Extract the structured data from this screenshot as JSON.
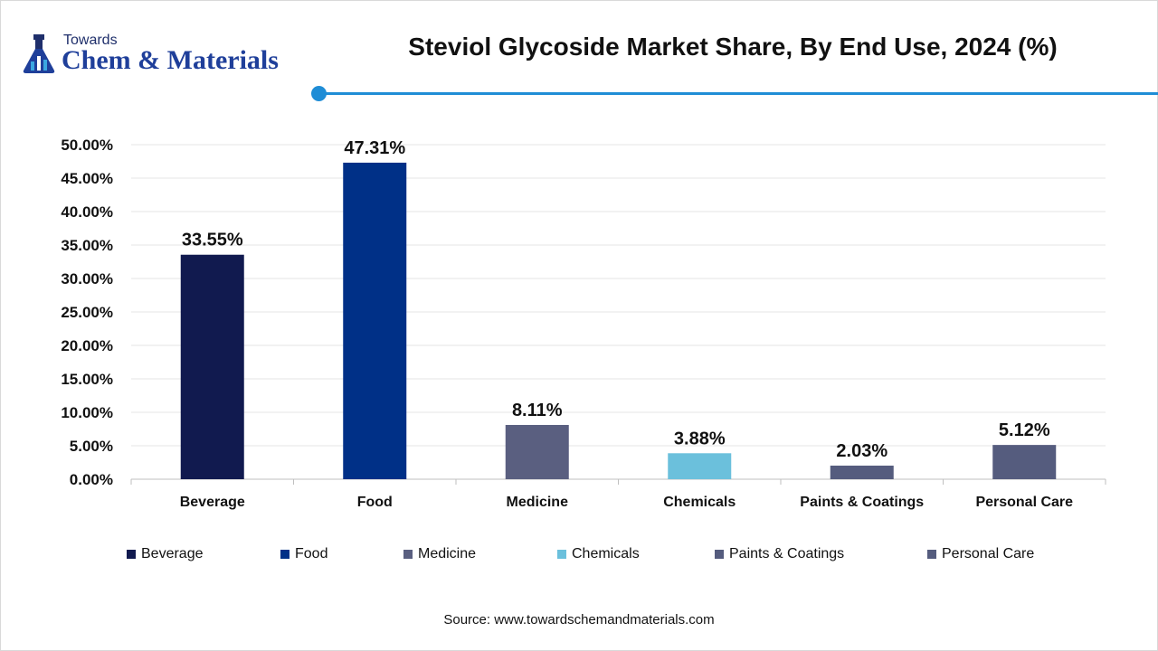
{
  "brand": {
    "top_text": "Towards",
    "main_text": "Chem & Materials",
    "icon": "flask-with-bars-icon",
    "colors": {
      "dark": "#1f2f6b",
      "accent": "#1f3f9a",
      "light": "#3ba7e0"
    }
  },
  "header": {
    "title": "Steviol Glycoside Market Share, By End Use, 2024 (%)",
    "rule_color": "#1f8dd6"
  },
  "chart_data": {
    "type": "bar",
    "title": "Steviol Glycoside Market Share, By End Use, 2024 (%)",
    "categories": [
      "Beverage",
      "Food",
      "Medicine",
      "Chemicals",
      "Paints & Coatings",
      "Personal Care"
    ],
    "values": [
      33.55,
      47.31,
      8.11,
      3.88,
      2.03,
      5.12
    ],
    "value_labels": [
      "33.55%",
      "47.31%",
      "8.11%",
      "3.88%",
      "2.03%",
      "5.12%"
    ],
    "colors": [
      "#111a4f",
      "#003087",
      "#5a5f80",
      "#6bc0dc",
      "#555c7e",
      "#555c7e"
    ],
    "xlabel": "",
    "ylabel": "",
    "ylim": [
      0,
      50
    ],
    "y_ticks": [
      0,
      5,
      10,
      15,
      20,
      25,
      30,
      35,
      40,
      45,
      50
    ],
    "y_tick_labels": [
      "0.00%",
      "5.00%",
      "10.00%",
      "15.00%",
      "20.00%",
      "25.00%",
      "30.00%",
      "35.00%",
      "40.00%",
      "45.00%",
      "50.00%"
    ],
    "grid": true,
    "legend": {
      "position": "bottom",
      "entries": [
        "Beverage",
        "Food",
        "Medicine",
        "Chemicals",
        "Paints & Coatings",
        "Personal Care"
      ]
    }
  },
  "footer": {
    "source": "Source: www.towardschemandmaterials.com"
  }
}
